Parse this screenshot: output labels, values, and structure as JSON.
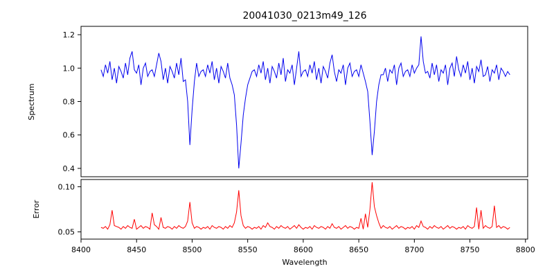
{
  "figure": {
    "title": "20041030_0213m49_126"
  },
  "chart_data": [
    {
      "type": "line",
      "title": "20041030_0213m49_126",
      "ylabel": "Spectrum",
      "line_color": "#0000ee",
      "grid": false,
      "legend": "none",
      "xlim": [
        8400,
        8802
      ],
      "ylim": [
        0.35,
        1.25
      ],
      "yticks": [
        0.4,
        0.6,
        0.8,
        1.0,
        1.2
      ],
      "ytick_labels": [
        "0.4",
        "0.6",
        "0.8",
        "1.0",
        "1.2"
      ],
      "x_start": 8418,
      "x_step": 2,
      "absorption_line_centers": [
        8498,
        8542,
        8662
      ],
      "y": [
        0.99,
        0.95,
        1.02,
        0.97,
        1.04,
        0.93,
        1.0,
        0.91,
        1.01,
        0.98,
        0.94,
        1.03,
        0.96,
        1.06,
        1.1,
        0.99,
        0.97,
        1.02,
        0.9,
        1.0,
        1.03,
        0.95,
        0.98,
        0.99,
        0.95,
        1.02,
        1.09,
        1.04,
        0.93,
        1.0,
        0.91,
        1.01,
        0.98,
        0.94,
        1.03,
        0.96,
        1.06,
        0.92,
        0.93,
        0.8,
        0.54,
        0.75,
        0.92,
        1.03,
        0.95,
        0.98,
        0.99,
        0.95,
        1.02,
        0.97,
        1.04,
        0.93,
        1.0,
        0.91,
        1.01,
        0.98,
        0.94,
        1.03,
        0.94,
        0.9,
        0.84,
        0.66,
        0.4,
        0.55,
        0.72,
        0.82,
        0.9,
        0.94,
        0.98,
        0.99,
        0.95,
        1.02,
        0.97,
        1.04,
        0.93,
        1.0,
        0.91,
        1.01,
        0.98,
        0.94,
        1.03,
        0.96,
        1.06,
        0.92,
        0.99,
        0.97,
        1.02,
        0.9,
        1.0,
        1.1,
        0.95,
        0.98,
        0.99,
        0.95,
        1.02,
        0.97,
        1.04,
        0.93,
        1.0,
        0.91,
        1.01,
        0.98,
        0.94,
        1.03,
        1.08,
        0.98,
        0.92,
        0.99,
        0.97,
        1.02,
        0.9,
        1.0,
        1.03,
        0.95,
        0.98,
        0.99,
        0.95,
        1.02,
        0.97,
        0.92,
        0.86,
        0.68,
        0.48,
        0.62,
        0.8,
        0.9,
        0.96,
        0.96,
        1.0,
        0.92,
        0.99,
        0.97,
        1.02,
        0.9,
        1.0,
        1.03,
        0.95,
        0.98,
        0.99,
        0.95,
        1.02,
        0.97,
        1.0,
        1.02,
        1.19,
        1.04,
        0.97,
        0.98,
        0.94,
        1.03,
        0.96,
        1.02,
        0.92,
        0.99,
        0.97,
        1.02,
        0.9,
        1.0,
        1.03,
        0.95,
        1.07,
        0.99,
        0.95,
        1.02,
        0.97,
        1.04,
        0.93,
        1.0,
        0.91,
        1.01,
        0.98,
        1.05,
        0.95,
        0.96,
        1.01,
        0.92,
        0.99,
        0.97,
        1.02,
        0.93,
        1.0,
        0.98,
        0.95,
        0.98,
        0.96
      ]
    },
    {
      "type": "line",
      "ylabel": "Error",
      "xlabel": "Wavelength",
      "line_color": "#ff0000",
      "grid": false,
      "legend": "none",
      "xlim": [
        8400,
        8802
      ],
      "ylim": [
        0.042,
        0.108
      ],
      "yticks": [
        0.05,
        0.1
      ],
      "ytick_labels": [
        "0.05",
        "0.10"
      ],
      "xticks": [
        8400,
        8450,
        8500,
        8550,
        8600,
        8650,
        8700,
        8750,
        8800
      ],
      "xtick_labels": [
        "8400",
        "8450",
        "8500",
        "8550",
        "8600",
        "8650",
        "8700",
        "8750",
        "8800"
      ],
      "x_start": 8418,
      "x_step": 2,
      "y": [
        0.055,
        0.054,
        0.056,
        0.053,
        0.058,
        0.074,
        0.057,
        0.056,
        0.055,
        0.053,
        0.056,
        0.054,
        0.057,
        0.055,
        0.054,
        0.064,
        0.053,
        0.055,
        0.057,
        0.054,
        0.056,
        0.055,
        0.053,
        0.071,
        0.058,
        0.056,
        0.053,
        0.066,
        0.055,
        0.054,
        0.056,
        0.055,
        0.053,
        0.056,
        0.054,
        0.057,
        0.055,
        0.054,
        0.056,
        0.062,
        0.083,
        0.06,
        0.054,
        0.056,
        0.055,
        0.053,
        0.055,
        0.054,
        0.056,
        0.053,
        0.057,
        0.055,
        0.054,
        0.056,
        0.055,
        0.053,
        0.056,
        0.054,
        0.057,
        0.055,
        0.06,
        0.072,
        0.096,
        0.068,
        0.057,
        0.054,
        0.056,
        0.055,
        0.053,
        0.055,
        0.054,
        0.056,
        0.053,
        0.057,
        0.055,
        0.06,
        0.056,
        0.055,
        0.053,
        0.056,
        0.054,
        0.057,
        0.055,
        0.054,
        0.056,
        0.053,
        0.055,
        0.057,
        0.054,
        0.058,
        0.055,
        0.053,
        0.055,
        0.054,
        0.056,
        0.053,
        0.057,
        0.055,
        0.054,
        0.056,
        0.055,
        0.053,
        0.056,
        0.054,
        0.059,
        0.055,
        0.054,
        0.056,
        0.053,
        0.055,
        0.057,
        0.054,
        0.056,
        0.055,
        0.053,
        0.055,
        0.054,
        0.065,
        0.053,
        0.07,
        0.055,
        0.075,
        0.105,
        0.078,
        0.068,
        0.06,
        0.054,
        0.057,
        0.055,
        0.054,
        0.056,
        0.053,
        0.055,
        0.057,
        0.054,
        0.056,
        0.055,
        0.053,
        0.055,
        0.054,
        0.056,
        0.053,
        0.057,
        0.055,
        0.062,
        0.056,
        0.055,
        0.053,
        0.056,
        0.054,
        0.057,
        0.055,
        0.054,
        0.056,
        0.053,
        0.055,
        0.057,
        0.054,
        0.056,
        0.055,
        0.053,
        0.055,
        0.054,
        0.056,
        0.053,
        0.057,
        0.055,
        0.054,
        0.056,
        0.077,
        0.053,
        0.074,
        0.054,
        0.057,
        0.055,
        0.054,
        0.056,
        0.079,
        0.055,
        0.057,
        0.054,
        0.056,
        0.055,
        0.053,
        0.055
      ]
    }
  ]
}
